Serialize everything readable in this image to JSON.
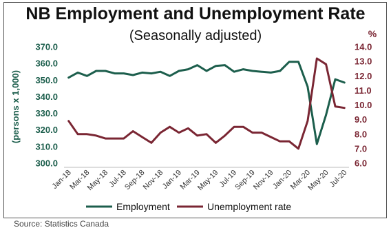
{
  "chart_data": {
    "type": "line",
    "title": "NB Employment and Unemployment Rate",
    "subtitle": "(Seasonally adjusted)",
    "ylabel_left": "(persons x 1,000)",
    "ylabel_right": "%",
    "ylim_left": [
      300,
      370
    ],
    "ylim_right": [
      6,
      14
    ],
    "yticks_left": [
      "300.0",
      "310.0",
      "320.0",
      "330.0",
      "340.0",
      "350.0",
      "360.0",
      "370.0"
    ],
    "yticks_right": [
      "6.0",
      "7.0",
      "8.0",
      "9.0",
      "10.0",
      "11.0",
      "12.0",
      "13.0",
      "14.0"
    ],
    "x": [
      "Jan-18",
      "Feb-18",
      "Mar-18",
      "Apr-18",
      "May-18",
      "Jun-18",
      "Jul-18",
      "Aug-18",
      "Sep-18",
      "Oct-18",
      "Nov-18",
      "Dec-18",
      "Jan-19",
      "Feb-19",
      "Mar-19",
      "Apr-19",
      "May-19",
      "Jun-19",
      "Jul-19",
      "Aug-19",
      "Sep-19",
      "Oct-19",
      "Nov-19",
      "Dec-19",
      "Jan-20",
      "Feb-20",
      "Mar-20",
      "Apr-20",
      "May-20",
      "Jun-20",
      "Jul-20"
    ],
    "xtick_labels": [
      "Jan-18",
      "Mar-18",
      "May-18",
      "Jul-18",
      "Sep-18",
      "Nov-18",
      "Jan-19",
      "Mar-19",
      "May-19",
      "Jul-19",
      "Sep-19",
      "Nov-19",
      "Jan-20",
      "Mar-20",
      "May-20",
      "Jul-20"
    ],
    "series": [
      {
        "name": "Employment",
        "axis": "left",
        "color": "#1c5e4c",
        "values": [
          351.5,
          354.5,
          352.5,
          355.5,
          355.5,
          354.0,
          354.0,
          353.0,
          354.5,
          354.0,
          355.0,
          352.5,
          355.5,
          356.5,
          359.0,
          355.5,
          358.5,
          359.0,
          355.0,
          356.5,
          355.5,
          355.0,
          354.5,
          355.5,
          361.0,
          361.0,
          346.0,
          311.5,
          329.0,
          350.5,
          348.5
        ]
      },
      {
        "name": "Unemployment rate",
        "axis": "right",
        "color": "#7a2633",
        "values": [
          8.9,
          8.0,
          8.0,
          7.9,
          7.7,
          7.7,
          7.7,
          8.2,
          7.8,
          7.4,
          8.1,
          8.5,
          8.1,
          8.4,
          7.9,
          8.0,
          7.4,
          7.9,
          8.5,
          8.5,
          8.1,
          8.1,
          7.8,
          7.5,
          7.5,
          7.0,
          8.9,
          13.2,
          12.8,
          9.9,
          9.8
        ]
      }
    ],
    "legend_position": "bottom",
    "grid": false
  },
  "source_text": "Source:  Statistics Canada"
}
